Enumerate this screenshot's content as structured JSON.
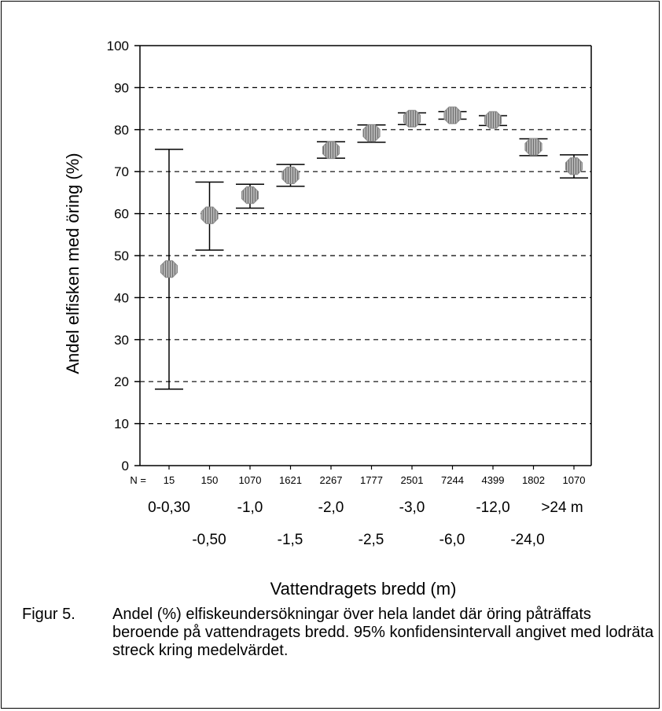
{
  "chart_data": {
    "type": "scatter",
    "ylabel": "Andel elfisken med öring (%)",
    "xlabel": "Vattendragets bredd (m)",
    "ylim": [
      0,
      100
    ],
    "yticks": [
      0,
      10,
      20,
      30,
      40,
      50,
      60,
      70,
      80,
      90,
      100
    ],
    "grid": "horizontal dashed",
    "n_label": "N =",
    "n_values": [
      "15",
      "150",
      "1070",
      "1621",
      "2267",
      "1777",
      "2501",
      "7244",
      "4399",
      "1802",
      "1070"
    ],
    "categories_row1": [
      "0-0,30",
      "-1,0",
      "-2,0",
      "-3,0",
      "-12,0",
      ">24 m"
    ],
    "categories_row2": [
      "-0,50",
      "-1,5",
      "-2,5",
      "-6,0",
      "-24,0"
    ],
    "series": [
      {
        "values": [
          46.8,
          59.6,
          64.4,
          69.1,
          75.1,
          79.2,
          82.6,
          83.4,
          82.3,
          75.9,
          71.3
        ],
        "ci_low": [
          18.2,
          51.3,
          61.3,
          66.5,
          73.2,
          77.0,
          81.2,
          82.5,
          81.0,
          73.8,
          68.5
        ],
        "ci_high": [
          75.3,
          67.5,
          67.0,
          71.7,
          77.1,
          81.1,
          84.0,
          84.3,
          83.3,
          77.8,
          74.0
        ]
      }
    ]
  },
  "caption": {
    "label": "Figur 5.",
    "text": "Andel (%) elfiskeundersökningar över hela landet där öring påträffats beroende på vattendragets bredd. 95% konfidensintervall angivet med lodräta streck kring medelvärdet."
  }
}
